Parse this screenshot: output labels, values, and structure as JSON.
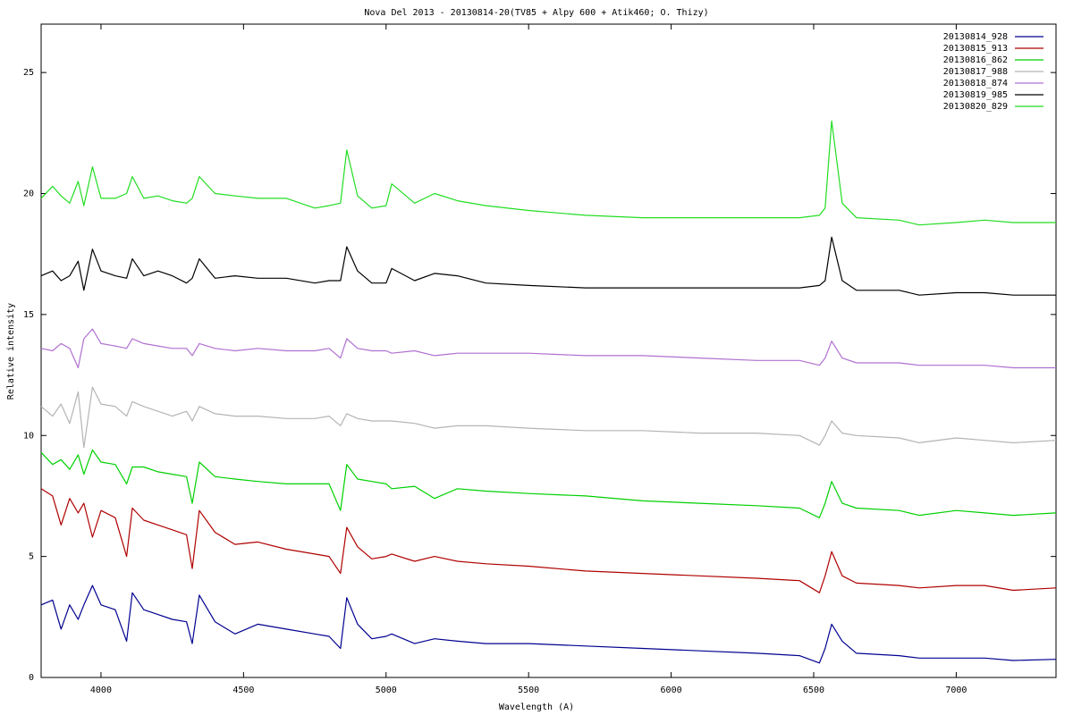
{
  "chart_data": {
    "type": "line",
    "title": "Nova Del 2013 - 20130814-20(TV85 + Alpy 600 + Atik460; O. Thizy)",
    "xlabel": "Wavelength (A)",
    "ylabel": "Relative intensity",
    "xlim": [
      3790,
      7350
    ],
    "ylim": [
      0,
      27
    ],
    "xticks": [
      4000,
      4500,
      5000,
      5500,
      6000,
      6500,
      7000
    ],
    "yticks": [
      0,
      5,
      10,
      15,
      20,
      25
    ],
    "grid": false,
    "legend": "upper right",
    "x": [
      3790,
      3830,
      3860,
      3890,
      3920,
      3940,
      3970,
      4000,
      4050,
      4090,
      4110,
      4150,
      4200,
      4250,
      4300,
      4320,
      4345,
      4400,
      4470,
      4550,
      4650,
      4750,
      4800,
      4840,
      4862,
      4900,
      4950,
      5000,
      5020,
      5100,
      5170,
      5250,
      5350,
      5500,
      5700,
      5900,
      6100,
      6300,
      6450,
      6520,
      6540,
      6563,
      6600,
      6650,
      6800,
      6870,
      7000,
      7100,
      7200,
      7350
    ],
    "series": [
      {
        "name": "20130814_928",
        "color": "#000090",
        "values": [
          3.0,
          3.2,
          2.0,
          3.0,
          2.4,
          3.0,
          3.8,
          3.0,
          2.8,
          1.5,
          3.5,
          2.8,
          2.6,
          2.4,
          2.3,
          1.4,
          3.4,
          2.3,
          1.8,
          2.2,
          2.0,
          1.8,
          1.7,
          1.2,
          3.3,
          2.2,
          1.6,
          1.7,
          1.8,
          1.4,
          1.6,
          1.5,
          1.4,
          1.4,
          1.3,
          1.2,
          1.1,
          1.0,
          0.9,
          0.6,
          1.2,
          2.2,
          1.5,
          1.0,
          0.9,
          0.8,
          0.8,
          0.8,
          0.7,
          0.75
        ]
      },
      {
        "name": "20130815_913",
        "color": "#b00000",
        "values": [
          7.8,
          7.5,
          6.3,
          7.4,
          6.8,
          7.2,
          5.8,
          6.9,
          6.6,
          5.0,
          7.0,
          6.5,
          6.3,
          6.1,
          5.9,
          4.5,
          6.9,
          6.0,
          5.5,
          5.6,
          5.3,
          5.1,
          5.0,
          4.3,
          6.2,
          5.4,
          4.9,
          5.0,
          5.1,
          4.8,
          5.0,
          4.8,
          4.7,
          4.6,
          4.4,
          4.3,
          4.2,
          4.1,
          4.0,
          3.5,
          4.2,
          5.2,
          4.2,
          3.9,
          3.8,
          3.7,
          3.8,
          3.8,
          3.6,
          3.7
        ]
      },
      {
        "name": "20130816_862",
        "color": "#00d000",
        "values": [
          9.3,
          8.8,
          9.0,
          8.6,
          9.2,
          8.4,
          9.4,
          8.9,
          8.8,
          8.0,
          8.7,
          8.7,
          8.5,
          8.4,
          8.3,
          7.2,
          8.9,
          8.3,
          8.2,
          8.1,
          8.0,
          8.0,
          8.0,
          6.9,
          8.8,
          8.2,
          8.1,
          8.0,
          7.8,
          7.9,
          7.4,
          7.8,
          7.7,
          7.6,
          7.5,
          7.3,
          7.2,
          7.1,
          7.0,
          6.6,
          7.2,
          8.1,
          7.2,
          7.0,
          6.9,
          6.7,
          6.9,
          6.8,
          6.7,
          6.8
        ]
      },
      {
        "name": "20130817_988",
        "color": "#b4b4b4",
        "values": [
          11.2,
          10.8,
          11.3,
          10.5,
          11.8,
          9.5,
          12.0,
          11.3,
          11.2,
          10.8,
          11.4,
          11.2,
          11.0,
          10.8,
          11.0,
          10.6,
          11.2,
          10.9,
          10.8,
          10.8,
          10.7,
          10.7,
          10.8,
          10.4,
          10.9,
          10.7,
          10.6,
          10.6,
          10.6,
          10.5,
          10.3,
          10.4,
          10.4,
          10.3,
          10.2,
          10.2,
          10.1,
          10.1,
          10.0,
          9.6,
          10.0,
          10.6,
          10.1,
          10.0,
          9.9,
          9.7,
          9.9,
          9.8,
          9.7,
          9.8
        ]
      },
      {
        "name": "20130818_874",
        "color": "#b070d0",
        "values": [
          13.6,
          13.5,
          13.8,
          13.6,
          12.8,
          14.0,
          14.4,
          13.8,
          13.7,
          13.6,
          14.0,
          13.8,
          13.7,
          13.6,
          13.6,
          13.3,
          13.8,
          13.6,
          13.5,
          13.6,
          13.5,
          13.5,
          13.6,
          13.2,
          14.0,
          13.6,
          13.5,
          13.5,
          13.4,
          13.5,
          13.3,
          13.4,
          13.4,
          13.4,
          13.3,
          13.3,
          13.2,
          13.1,
          13.1,
          12.9,
          13.2,
          13.9,
          13.2,
          13.0,
          13.0,
          12.9,
          12.9,
          12.9,
          12.8,
          12.8
        ]
      },
      {
        "name": "20130819_985",
        "color": "#000000",
        "values": [
          16.6,
          16.8,
          16.4,
          16.6,
          17.2,
          16.0,
          17.7,
          16.8,
          16.6,
          16.5,
          17.3,
          16.6,
          16.8,
          16.6,
          16.3,
          16.5,
          17.3,
          16.5,
          16.6,
          16.5,
          16.5,
          16.3,
          16.4,
          16.4,
          17.8,
          16.8,
          16.3,
          16.3,
          16.9,
          16.4,
          16.7,
          16.6,
          16.3,
          16.2,
          16.1,
          16.1,
          16.1,
          16.1,
          16.1,
          16.2,
          16.4,
          18.2,
          16.4,
          16.0,
          16.0,
          15.8,
          15.9,
          15.9,
          15.8,
          15.8
        ]
      },
      {
        "name": "20130820_829",
        "color": "#22dd22",
        "values": [
          19.8,
          20.3,
          19.9,
          19.6,
          20.5,
          19.5,
          21.1,
          19.8,
          19.8,
          20.0,
          20.7,
          19.8,
          19.9,
          19.7,
          19.6,
          19.8,
          20.7,
          20.0,
          19.9,
          19.8,
          19.8,
          19.4,
          19.5,
          19.6,
          21.8,
          19.9,
          19.4,
          19.5,
          20.4,
          19.6,
          20.0,
          19.7,
          19.5,
          19.3,
          19.1,
          19.0,
          19.0,
          19.0,
          19.0,
          19.1,
          19.4,
          23.0,
          19.6,
          19.0,
          18.9,
          18.7,
          18.8,
          18.9,
          18.8,
          18.8
        ]
      }
    ]
  }
}
